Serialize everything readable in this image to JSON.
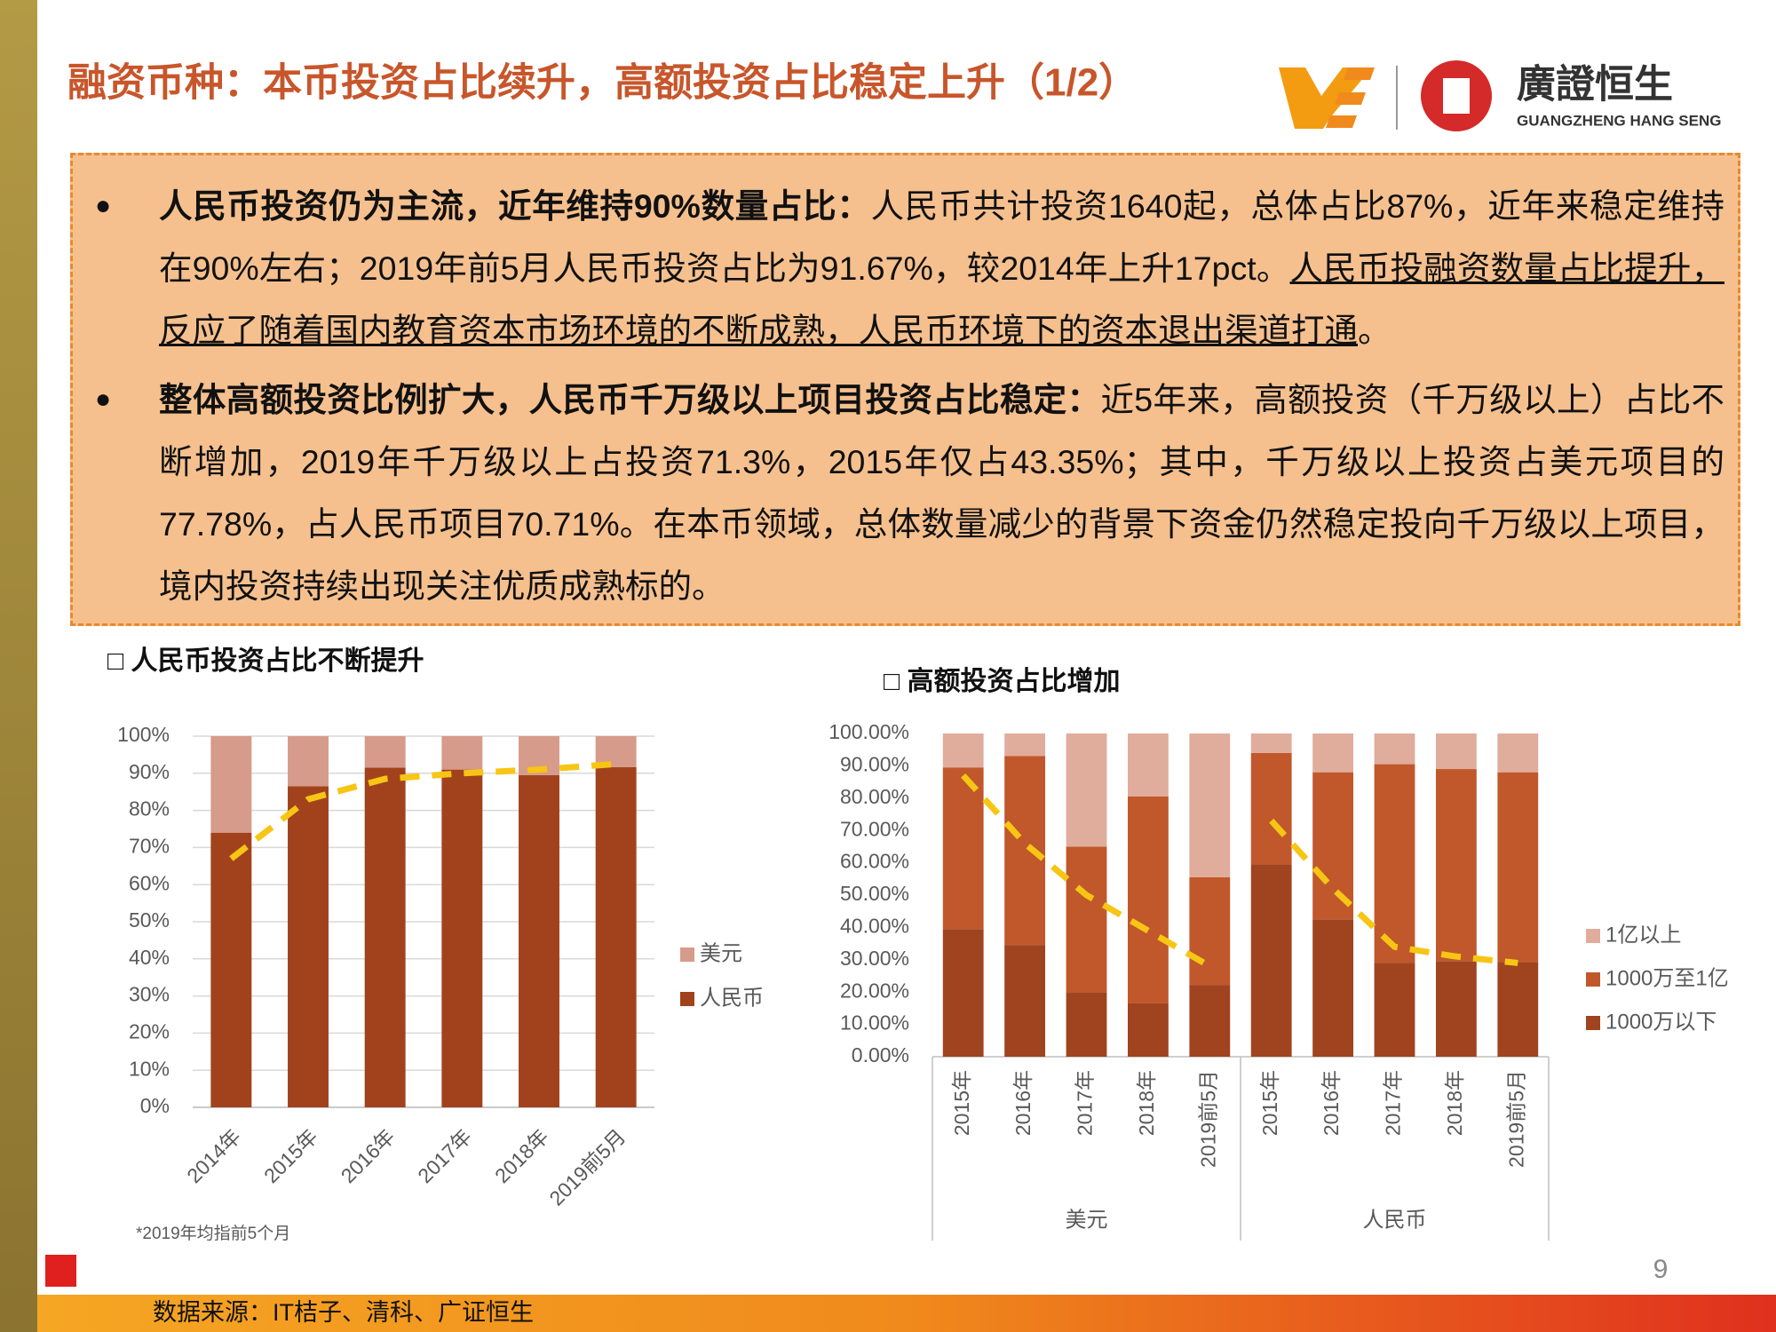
{
  "header": {
    "title": "融资币种：本币投资占比续升，高额投资占比稳定上升（1/2）",
    "logo_name": "廣證恒生",
    "logo_sub": "GUANGZHENG HANG SENG"
  },
  "body": {
    "bullets": [
      [
        {
          "text": "人民币投资仍为主流，近年维持90%数量占比：",
          "style": "bold"
        },
        {
          "text": "人民币共计投资1640起，总体占比87%，近年来稳定维持在90%左右；2019年前5月人民币投资占比为91.67%，较2014年上升17pct。",
          "style": "normal"
        },
        {
          "text": "人民币投融资数量占比提升，反应了随着国内教育资本市场环境的不断成熟，人民币环境下的资本退出渠道打通",
          "style": "underline"
        },
        {
          "text": "。",
          "style": "normal"
        }
      ],
      [
        {
          "text": "整体高额投资比例扩大，人民币千万级以上项目投资占比稳定：",
          "style": "bold"
        },
        {
          "text": "近5年来，高额投资（千万级以上）占比不断增加，2019年千万级以上占投资71.3%，2015年仅占43.35%；其中，千万级以上投资占美元项目的77.78%，占人民币项目70.71%。在本币领域，总体数量减少的背景下资金仍然稳定投向千万级以上项目，境内投资持续出现关注优质成熟标的。",
          "style": "normal"
        }
      ]
    ]
  },
  "chart_data": [
    {
      "type": "stacked-bar",
      "title": "□ 人民币投资占比不断提升",
      "categories": [
        "2014年",
        "2015年",
        "2016年",
        "2017年",
        "2018年",
        "2019前5月"
      ],
      "series": [
        {
          "name": "人民币",
          "color": "#a2421d",
          "values": [
            74,
            86.5,
            91.5,
            91,
            89.5,
            91.67
          ]
        },
        {
          "name": "美元",
          "color": "#d69b8a",
          "values": [
            26,
            13.5,
            8.5,
            9,
            10.5,
            8.33
          ]
        }
      ],
      "trendline": {
        "color": "#f7c514",
        "values": [
          67,
          83,
          88.5,
          90,
          91,
          92.5
        ]
      },
      "ylim": [
        0,
        100
      ],
      "yticks": [
        {
          "value": 0,
          "label": "0%"
        },
        {
          "value": 10,
          "label": "10%"
        },
        {
          "value": 20,
          "label": "20%"
        },
        {
          "value": 30,
          "label": "30%"
        },
        {
          "value": 40,
          "label": "40%"
        },
        {
          "value": 50,
          "label": "50%"
        },
        {
          "value": 60,
          "label": "60%"
        },
        {
          "value": 70,
          "label": "70%"
        },
        {
          "value": 80,
          "label": "80%"
        },
        {
          "value": 90,
          "label": "90%"
        },
        {
          "value": 100,
          "label": "100%"
        }
      ],
      "grid": true,
      "note": "*2019年均指前5个月"
    },
    {
      "type": "stacked-bar",
      "title": "□ 高额投资占比增加",
      "groups": [
        {
          "name": "美元",
          "categories": [
            "2015年",
            "2016年",
            "2017年",
            "2018年",
            "2019前5月"
          ]
        },
        {
          "name": "人民币",
          "categories": [
            "2015年",
            "2016年",
            "2017年",
            "2018年",
            "2019前5月"
          ]
        }
      ],
      "series": [
        {
          "name": "1000万以下",
          "color": "#a0431f",
          "values": [
            39.5,
            34.5,
            20,
            16.5,
            22.22,
            59.5,
            42.5,
            29,
            29.5,
            29.29
          ]
        },
        {
          "name": "1000万至1亿",
          "color": "#c0582b",
          "values": [
            50,
            58.5,
            45,
            64,
            33.33,
            34.5,
            45.5,
            61.5,
            59.5,
            58.71
          ]
        },
        {
          "name": "1亿以上",
          "color": "#e0ac9c",
          "values": [
            10.5,
            7,
            35,
            19.5,
            44.45,
            6,
            12,
            9.5,
            11,
            12
          ]
        }
      ],
      "trendlines": [
        {
          "color": "#f7c514",
          "values": [
            87,
            66,
            50,
            39,
            28
          ]
        },
        {
          "color": "#f7c514",
          "values": [
            73,
            52,
            34,
            31,
            29
          ]
        }
      ],
      "ylim": [
        0,
        100
      ],
      "yticks": [
        {
          "value": 0,
          "label": "0.00%"
        },
        {
          "value": 10,
          "label": "10.00%"
        },
        {
          "value": 20,
          "label": "20.00%"
        },
        {
          "value": 30,
          "label": "30.00%"
        },
        {
          "value": 40,
          "label": "40.00%"
        },
        {
          "value": 50,
          "label": "50.00%"
        },
        {
          "value": 60,
          "label": "60.00%"
        },
        {
          "value": 70,
          "label": "70.00%"
        },
        {
          "value": 80,
          "label": "80.00%"
        },
        {
          "value": 90,
          "label": "90.00%"
        },
        {
          "value": 100,
          "label": "100.00%"
        }
      ],
      "grid": false
    }
  ],
  "footer": {
    "page": "9",
    "source": "数据来源：IT桔子、清科、广证恒生"
  }
}
